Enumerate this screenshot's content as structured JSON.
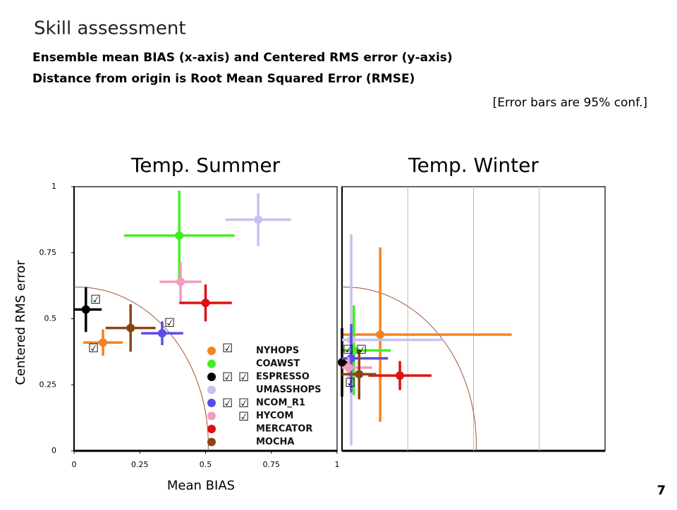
{
  "slide": {
    "title": "Skill assessment",
    "subtitle_lines": [
      "Ensemble mean BIAS (x-axis) and Centered RMS error (y-axis)",
      "Distance from origin is Root Mean Squared Error (RMSE)"
    ],
    "note": "[Error bars are 95% conf.]",
    "page_number": "7",
    "checkmark": "☑"
  },
  "chart_data": [
    {
      "type": "scatter",
      "title": "Temp. Summer",
      "xlabel": "Mean BIAS",
      "ylabel": "Centered RMS error",
      "xlim": [
        0,
        1
      ],
      "ylim": [
        0,
        1
      ],
      "xticks": [
        0,
        0.25,
        0.5,
        0.75,
        1
      ],
      "yticks": [
        0,
        0.25,
        0.5,
        0.75,
        1
      ],
      "series": [
        {
          "name": "NYHOPS",
          "color": "#f5821f",
          "x": [
            0.11
          ],
          "values": [
            0.41
          ],
          "x_err": [
            0.075
          ],
          "y_err": [
            0.05
          ]
        },
        {
          "name": "COAWST",
          "color": "#44ee22",
          "x": [
            0.4
          ],
          "values": [
            0.815
          ],
          "x_err": [
            0.21
          ],
          "y_err": [
            0.17
          ]
        },
        {
          "name": "ESPRESSO",
          "color": "#000000",
          "x": [
            0.045
          ],
          "values": [
            0.535
          ],
          "x_err": [
            0.06
          ],
          "y_err": [
            0.085
          ]
        },
        {
          "name": "UMASSHOPS",
          "color": "#c8c0f0",
          "x": [
            0.7
          ],
          "values": [
            0.875
          ],
          "x_err": [
            0.125
          ],
          "y_err": [
            0.1
          ]
        },
        {
          "name": "NCOM_R1",
          "color": "#5a4ce8",
          "x": [
            0.335
          ],
          "values": [
            0.445
          ],
          "x_err": [
            0.08
          ],
          "y_err": [
            0.045
          ]
        },
        {
          "name": "HYCOM",
          "color": "#f59ac0",
          "x": [
            0.405
          ],
          "values": [
            0.64
          ],
          "x_err": [
            0.08
          ],
          "y_err": [
            0.075
          ]
        },
        {
          "name": "MERCATOR",
          "color": "#dd1111",
          "x": [
            0.5
          ],
          "values": [
            0.56
          ],
          "x_err": [
            0.1
          ],
          "y_err": [
            0.07
          ]
        },
        {
          "name": "MOCHA",
          "color": "#8b4513",
          "x": [
            0.215
          ],
          "values": [
            0.465
          ],
          "x_err": [
            0.095
          ],
          "y_err": [
            0.09
          ]
        }
      ]
    },
    {
      "type": "scatter",
      "title": "Temp. Winter",
      "xlim": [
        0,
        1
      ],
      "ylim": [
        0,
        1
      ],
      "series": [
        {
          "color": "#f5821f",
          "x": [
            0.145
          ],
          "values": [
            0.44
          ],
          "x_err": [
            0.5
          ],
          "y_err": [
            0.33
          ]
        },
        {
          "color": "#44ee22",
          "x": [
            0.045
          ],
          "values": [
            0.38
          ],
          "x_err": [
            0.14
          ],
          "y_err": [
            0.17
          ]
        },
        {
          "color": "#000000",
          "x": [
            0.0
          ],
          "values": [
            0.335
          ],
          "x_err": [
            0.02
          ],
          "y_err": [
            0.13
          ]
        },
        {
          "color": "#c8c0f0",
          "x": [
            0.035
          ],
          "values": [
            0.42
          ],
          "x_err": [
            0.35
          ],
          "y_err": [
            0.4
          ]
        },
        {
          "color": "#5a4ce8",
          "x": [
            0.035
          ],
          "values": [
            0.35
          ],
          "x_err": [
            0.14
          ],
          "y_err": [
            0.13
          ]
        },
        {
          "color": "#f59ac0",
          "x": [
            0.025
          ],
          "values": [
            0.315
          ],
          "x_err": [
            0.09
          ],
          "y_err": [
            0.04
          ]
        },
        {
          "color": "#dd1111",
          "x": [
            0.22
          ],
          "values": [
            0.285
          ],
          "x_err": [
            0.12
          ],
          "y_err": [
            0.055
          ]
        },
        {
          "color": "#8b4513",
          "x": [
            0.065
          ],
          "values": [
            0.29
          ],
          "x_err": [
            0.065
          ],
          "y_err": [
            0.095
          ]
        }
      ]
    }
  ]
}
